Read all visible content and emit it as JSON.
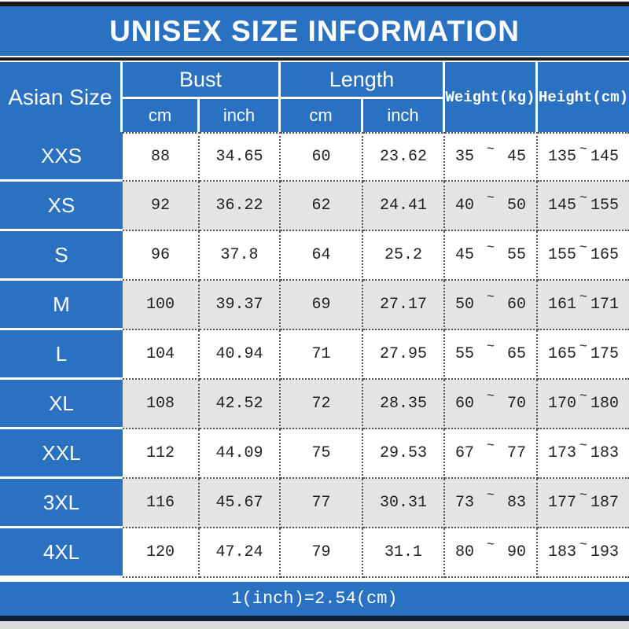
{
  "title": "UNISEX SIZE INFORMATION",
  "footer": {
    "conversion_note": "1(inch)=2.54(cm)"
  },
  "colors": {
    "accent_blue": "#2b71c2",
    "alt_row_gray": "#e4e4e4",
    "top_bar_black": "#1b1b1b",
    "bottom_bar_navy": "#0f1e33",
    "bottom_strip_gray": "#d9d9d9"
  },
  "table": {
    "tilde": "~",
    "size_column_header": "Asian Size",
    "groups": [
      {
        "label": "Bust",
        "sub": [
          "cm",
          "inch"
        ]
      },
      {
        "label": "Length",
        "sub": [
          "cm",
          "inch"
        ]
      }
    ],
    "single_headers": [
      "Weight(kg)",
      "Height(cm)"
    ],
    "rows": [
      {
        "size": "XXS",
        "bust_cm": "88",
        "bust_inch": "34.65",
        "length_cm": "60",
        "length_inch": "23.62",
        "weight_min": "35",
        "weight_max": "45",
        "height_min": "135",
        "height_max": "145"
      },
      {
        "size": "XS",
        "bust_cm": "92",
        "bust_inch": "36.22",
        "length_cm": "62",
        "length_inch": "24.41",
        "weight_min": "40",
        "weight_max": "50",
        "height_min": "145",
        "height_max": "155"
      },
      {
        "size": "S",
        "bust_cm": "96",
        "bust_inch": "37.8",
        "length_cm": "64",
        "length_inch": "25.2",
        "weight_min": "45",
        "weight_max": "55",
        "height_min": "155",
        "height_max": "165"
      },
      {
        "size": "M",
        "bust_cm": "100",
        "bust_inch": "39.37",
        "length_cm": "69",
        "length_inch": "27.17",
        "weight_min": "50",
        "weight_max": "60",
        "height_min": "161",
        "height_max": "171"
      },
      {
        "size": "L",
        "bust_cm": "104",
        "bust_inch": "40.94",
        "length_cm": "71",
        "length_inch": "27.95",
        "weight_min": "55",
        "weight_max": "65",
        "height_min": "165",
        "height_max": "175"
      },
      {
        "size": "XL",
        "bust_cm": "108",
        "bust_inch": "42.52",
        "length_cm": "72",
        "length_inch": "28.35",
        "weight_min": "60",
        "weight_max": "70",
        "height_min": "170",
        "height_max": "180"
      },
      {
        "size": "XXL",
        "bust_cm": "112",
        "bust_inch": "44.09",
        "length_cm": "75",
        "length_inch": "29.53",
        "weight_min": "67",
        "weight_max": "77",
        "height_min": "173",
        "height_max": "183"
      },
      {
        "size": "3XL",
        "bust_cm": "116",
        "bust_inch": "45.67",
        "length_cm": "77",
        "length_inch": "30.31",
        "weight_min": "73",
        "weight_max": "83",
        "height_min": "177",
        "height_max": "187"
      },
      {
        "size": "4XL",
        "bust_cm": "120",
        "bust_inch": "47.24",
        "length_cm": "79",
        "length_inch": "31.1",
        "weight_min": "80",
        "weight_max": "90",
        "height_min": "183",
        "height_max": "193"
      }
    ]
  },
  "chart_data": {
    "type": "table",
    "title": "UNISEX SIZE INFORMATION",
    "columns": [
      "Asian Size",
      "Bust cm",
      "Bust inch",
      "Length cm",
      "Length inch",
      "Weight(kg)",
      "Height(cm)"
    ],
    "rows": [
      [
        "XXS",
        88,
        34.65,
        60,
        23.62,
        "35~45",
        "135~145"
      ],
      [
        "XS",
        92,
        36.22,
        62,
        24.41,
        "40~50",
        "145~155"
      ],
      [
        "S",
        96,
        37.8,
        64,
        25.2,
        "45~55",
        "155~165"
      ],
      [
        "M",
        100,
        39.37,
        69,
        27.17,
        "50~60",
        "161~171"
      ],
      [
        "L",
        104,
        40.94,
        71,
        27.95,
        "55~65",
        "165~175"
      ],
      [
        "XL",
        108,
        42.52,
        72,
        28.35,
        "60~70",
        "170~180"
      ],
      [
        "XXL",
        112,
        44.09,
        75,
        29.53,
        "67~77",
        "173~183"
      ],
      [
        "3XL",
        116,
        45.67,
        77,
        30.31,
        "73~83",
        "177~187"
      ],
      [
        "4XL",
        120,
        47.24,
        79,
        31.1,
        "80~90",
        "183~193"
      ]
    ],
    "footnote": "1(inch)=2.54(cm)"
  }
}
